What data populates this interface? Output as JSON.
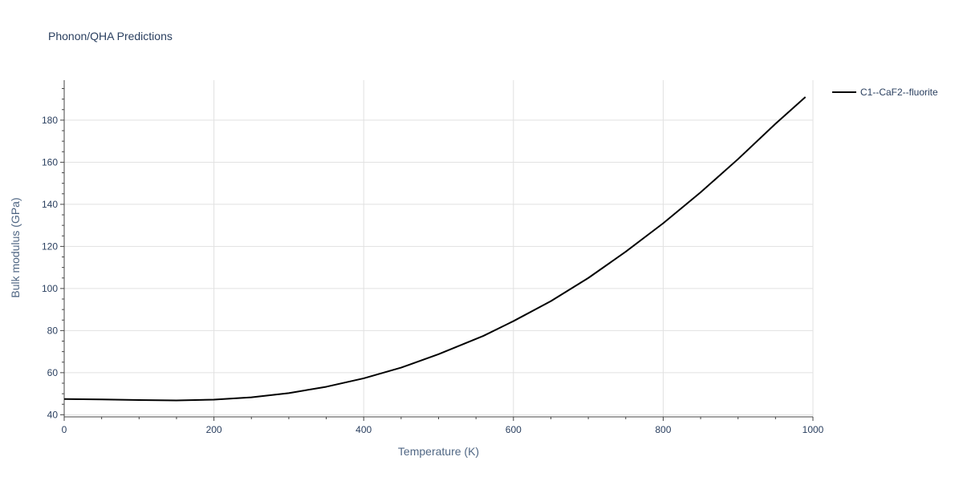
{
  "chart_data": {
    "type": "line",
    "title": "Phonon/QHA Predictions",
    "xlabel": "Temperature (K)",
    "ylabel": "Bulk modulus (GPa)",
    "xlim": [
      0,
      1000
    ],
    "ylim": [
      39,
      199
    ],
    "x_ticks": [
      0,
      200,
      400,
      600,
      800,
      1000
    ],
    "y_ticks": [
      40,
      60,
      80,
      100,
      120,
      140,
      160,
      180
    ],
    "x_minor_step": 50,
    "y_minor_step": 5,
    "grid": true,
    "legend_position": "top-right",
    "series": [
      {
        "name": "C1--CaF2--fluorite",
        "color": "#000000",
        "x": [
          0,
          50,
          100,
          150,
          200,
          250,
          300,
          350,
          400,
          450,
          500,
          560,
          600,
          650,
          700,
          750,
          800,
          850,
          900,
          950,
          990
        ],
        "y": [
          47.5,
          47.3,
          47.0,
          46.8,
          47.2,
          48.3,
          50.3,
          53.3,
          57.3,
          62.4,
          68.8,
          77.5,
          84.5,
          94.0,
          105.0,
          117.5,
          131.0,
          145.7,
          161.5,
          178.3,
          191.0
        ]
      }
    ]
  }
}
